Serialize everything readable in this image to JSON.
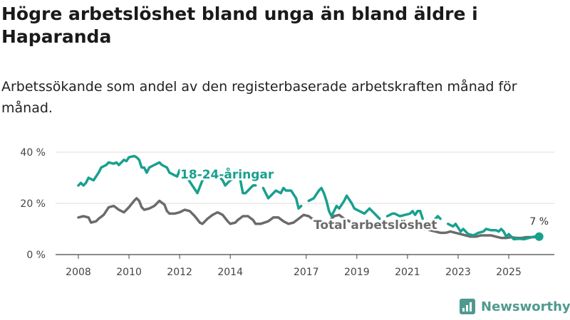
{
  "title": "Högre arbetslöshet bland unga än bland äldre i Haparanda",
  "subtitle": "Arbetssökande som andel av den registerbaserade arbetskraften månad för månad.",
  "brand": "Newsworthy",
  "colors": {
    "young": "#18a08e",
    "total": "#6b6b6b",
    "brand": "#4f9a8e"
  },
  "chart_data": {
    "type": "line",
    "y_ticks": [
      "0 %",
      "20 %",
      "40 %"
    ],
    "y_tick_values": [
      0,
      20,
      40
    ],
    "ylim": [
      0,
      40
    ],
    "x_ticks": [
      "2008",
      "2010",
      "2012",
      "2014",
      "2017",
      "2019",
      "2021",
      "2023",
      "2025"
    ],
    "x_tick_values": [
      2008,
      2010,
      2012,
      2014,
      2017,
      2019,
      2021,
      2023,
      2025
    ],
    "xlim": [
      2007.1,
      2026.8
    ],
    "end_label": "7 %",
    "series": [
      {
        "name": "18-24-åringar",
        "color": "#18a08e",
        "points": [
          [
            2008.0,
            27
          ],
          [
            2008.1,
            28
          ],
          [
            2008.2,
            27
          ],
          [
            2008.3,
            28
          ],
          [
            2008.4,
            30
          ],
          [
            2008.6,
            29
          ],
          [
            2008.8,
            32
          ],
          [
            2008.9,
            34
          ],
          [
            2009.1,
            35
          ],
          [
            2009.2,
            36
          ],
          [
            2009.4,
            35.5
          ],
          [
            2009.5,
            36
          ],
          [
            2009.6,
            35
          ],
          [
            2009.7,
            36
          ],
          [
            2009.8,
            37
          ],
          [
            2009.9,
            36.5
          ],
          [
            2010.0,
            38
          ],
          [
            2010.2,
            38.5
          ],
          [
            2010.3,
            38
          ],
          [
            2010.4,
            37
          ],
          [
            2010.5,
            34
          ],
          [
            2010.6,
            34
          ],
          [
            2010.7,
            32
          ],
          [
            2010.8,
            34
          ],
          [
            2011.0,
            35
          ],
          [
            2011.2,
            36
          ],
          [
            2011.3,
            35
          ],
          [
            2011.5,
            34
          ],
          [
            2011.6,
            32
          ],
          [
            2011.8,
            31
          ],
          [
            2011.9,
            30.5
          ],
          [
            2012.0,
            33
          ],
          [
            2012.1,
            33
          ],
          null,
          [
            2012.3,
            30
          ],
          [
            2012.5,
            27
          ],
          [
            2012.7,
            24
          ],
          [
            2012.9,
            29
          ],
          [
            2013.0,
            30
          ],
          [
            2013.1,
            31
          ],
          [
            2013.3,
            31.5
          ],
          [
            2013.4,
            32
          ],
          [
            2013.5,
            31
          ],
          null,
          [
            2013.6,
            30
          ],
          [
            2013.7,
            29
          ],
          [
            2013.8,
            27
          ],
          [
            2013.9,
            28
          ],
          [
            2014.0,
            29
          ],
          [
            2014.2,
            30
          ],
          [
            2014.3,
            31
          ],
          [
            2014.4,
            29
          ],
          [
            2014.5,
            24
          ],
          [
            2014.6,
            24
          ],
          [
            2014.8,
            26
          ],
          [
            2014.9,
            27
          ],
          [
            2015.0,
            27
          ],
          null,
          [
            2015.3,
            26
          ],
          [
            2015.5,
            22
          ],
          [
            2015.7,
            24
          ],
          [
            2015.8,
            25
          ],
          [
            2016.0,
            24
          ],
          [
            2016.1,
            26
          ],
          [
            2016.2,
            25
          ],
          [
            2016.4,
            25
          ],
          [
            2016.6,
            22
          ],
          [
            2016.7,
            18
          ],
          [
            2016.8,
            19
          ],
          null,
          [
            2017.1,
            21
          ],
          [
            2017.3,
            22
          ],
          [
            2017.5,
            25
          ],
          [
            2017.6,
            26
          ],
          [
            2017.7,
            24
          ],
          [
            2017.8,
            21
          ],
          [
            2017.9,
            17
          ],
          [
            2018.0,
            15
          ],
          [
            2018.2,
            19
          ],
          [
            2018.3,
            18
          ],
          [
            2018.5,
            21
          ],
          [
            2018.6,
            23
          ],
          [
            2018.8,
            20
          ],
          [
            2018.9,
            18
          ],
          [
            2019.1,
            17
          ],
          [
            2019.3,
            16
          ],
          [
            2019.5,
            18
          ],
          [
            2019.6,
            17
          ],
          [
            2019.8,
            15
          ],
          [
            2019.9,
            14
          ],
          null,
          [
            2020.2,
            15
          ],
          [
            2020.4,
            16
          ],
          [
            2020.5,
            16
          ],
          [
            2020.7,
            15
          ],
          [
            2020.9,
            15.5
          ],
          [
            2021.1,
            16
          ],
          [
            2021.2,
            17
          ],
          [
            2021.3,
            15.5
          ],
          [
            2021.4,
            17
          ],
          [
            2021.5,
            17
          ],
          [
            2021.6,
            14
          ],
          null,
          [
            2022.1,
            14
          ],
          [
            2022.2,
            15
          ],
          [
            2022.3,
            14
          ],
          null,
          [
            2022.6,
            12
          ],
          [
            2022.8,
            11
          ],
          [
            2022.9,
            12
          ],
          [
            2023.0,
            10.5
          ],
          [
            2023.1,
            9
          ],
          [
            2023.2,
            10
          ],
          [
            2023.4,
            8
          ],
          [
            2023.6,
            7.5
          ],
          [
            2023.8,
            8.5
          ],
          [
            2024.0,
            9
          ],
          [
            2024.1,
            10
          ],
          [
            2024.3,
            9.5
          ],
          [
            2024.5,
            9.5
          ],
          [
            2024.6,
            9
          ],
          [
            2024.7,
            10
          ],
          [
            2024.8,
            9
          ],
          [
            2024.9,
            7
          ],
          [
            2025.0,
            8
          ],
          [
            2025.2,
            6
          ],
          [
            2025.4,
            6.2
          ],
          [
            2025.6,
            6
          ],
          [
            2025.8,
            6.5
          ],
          [
            2026.0,
            7
          ],
          [
            2026.2,
            7
          ]
        ]
      },
      {
        "name": "Total arbetslöshet",
        "color": "#6b6b6b",
        "points": [
          [
            2008.0,
            14.5
          ],
          [
            2008.2,
            15
          ],
          [
            2008.4,
            14.5
          ],
          [
            2008.5,
            12.5
          ],
          [
            2008.7,
            13
          ],
          [
            2008.8,
            14
          ],
          [
            2009.0,
            15.5
          ],
          [
            2009.2,
            18.5
          ],
          [
            2009.4,
            19
          ],
          [
            2009.6,
            17.5
          ],
          [
            2009.8,
            16.5
          ],
          [
            2010.0,
            18.5
          ],
          [
            2010.2,
            21
          ],
          [
            2010.3,
            22
          ],
          [
            2010.4,
            21
          ],
          [
            2010.5,
            18.5
          ],
          [
            2010.6,
            17.5
          ],
          [
            2010.8,
            18
          ],
          [
            2011.0,
            19
          ],
          [
            2011.2,
            21
          ],
          [
            2011.4,
            19.5
          ],
          [
            2011.5,
            17
          ],
          [
            2011.6,
            16
          ],
          [
            2011.8,
            16
          ],
          [
            2012.0,
            16.5
          ],
          [
            2012.2,
            17.5
          ],
          [
            2012.4,
            17
          ],
          [
            2012.6,
            15
          ],
          [
            2012.8,
            12.5
          ],
          [
            2012.9,
            12
          ],
          [
            2013.1,
            14
          ],
          [
            2013.3,
            15.5
          ],
          [
            2013.5,
            16.5
          ],
          [
            2013.7,
            15.5
          ],
          [
            2013.9,
            13
          ],
          [
            2014.0,
            12
          ],
          [
            2014.2,
            12.5
          ],
          [
            2014.3,
            13.5
          ],
          [
            2014.5,
            15
          ],
          [
            2014.7,
            15
          ],
          [
            2014.9,
            13.5
          ],
          [
            2015.0,
            12
          ],
          [
            2015.2,
            12
          ],
          [
            2015.5,
            13
          ],
          [
            2015.7,
            14.5
          ],
          [
            2015.9,
            14.5
          ],
          [
            2016.1,
            13
          ],
          [
            2016.3,
            12
          ],
          [
            2016.5,
            12.5
          ],
          [
            2016.7,
            14
          ],
          [
            2016.9,
            15.5
          ],
          [
            2017.1,
            15
          ],
          [
            2017.3,
            13.5
          ],
          [
            2017.5,
            12
          ],
          [
            2017.7,
            12
          ],
          [
            2017.9,
            13
          ],
          [
            2018.1,
            15
          ],
          [
            2018.3,
            15.5
          ],
          [
            2018.5,
            14
          ],
          [
            2018.7,
            13
          ],
          [
            2018.9,
            12
          ],
          [
            2019.1,
            12
          ],
          [
            2019.3,
            12.5
          ],
          [
            2019.5,
            12
          ],
          [
            2019.7,
            11.5
          ],
          [
            2019.9,
            11
          ],
          [
            2020.1,
            11
          ],
          [
            2020.3,
            11
          ],
          [
            2020.5,
            10.5
          ],
          [
            2020.7,
            10.5
          ],
          [
            2020.9,
            10
          ],
          [
            2021.1,
            10
          ],
          [
            2021.3,
            10.5
          ],
          [
            2021.5,
            10
          ],
          [
            2021.7,
            10
          ],
          [
            2021.9,
            9.5
          ],
          [
            2022.1,
            9
          ],
          [
            2022.3,
            8.5
          ],
          [
            2022.5,
            8.5
          ],
          [
            2022.7,
            9
          ],
          [
            2022.9,
            8.5
          ],
          [
            2023.1,
            8
          ],
          [
            2023.3,
            7.5
          ],
          [
            2023.5,
            7
          ],
          [
            2023.7,
            7
          ],
          [
            2023.9,
            7.5
          ],
          [
            2024.1,
            7.5
          ],
          [
            2024.3,
            7.5
          ],
          [
            2024.5,
            7
          ],
          [
            2024.7,
            6.5
          ],
          [
            2024.9,
            6.5
          ],
          [
            2025.1,
            6.8
          ],
          [
            2025.3,
            6.5
          ],
          [
            2025.5,
            6.5
          ],
          [
            2025.7,
            6.8
          ],
          [
            2025.9,
            6.8
          ],
          [
            2026.2,
            6.8
          ]
        ]
      }
    ]
  }
}
